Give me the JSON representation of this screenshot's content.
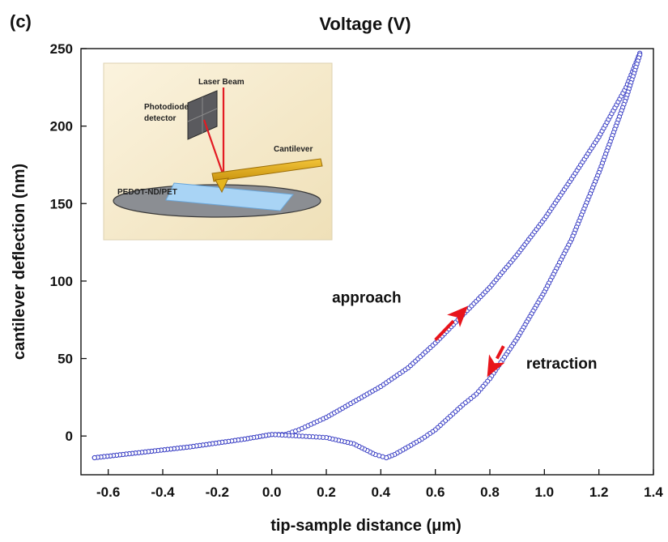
{
  "panel_label": "(c)",
  "chart_data": {
    "type": "scatter",
    "title": "Voltage (V)",
    "xlabel": "tip-sample distance  (μm)",
    "ylabel": "cantilever deflection  (nm)",
    "xlim": [
      -0.7,
      1.4
    ],
    "ylim": [
      -25,
      250
    ],
    "xticks": [
      -0.6,
      -0.4,
      -0.2,
      0.0,
      0.2,
      0.4,
      0.6,
      0.8,
      1.0,
      1.2,
      1.4
    ],
    "xtick_labels": [
      "-0.6",
      "-0.4",
      "-0.2",
      "0.0",
      "0.2",
      "0.4",
      "0.6",
      "0.8",
      "1.0",
      "1.2",
      "1.4"
    ],
    "yticks": [
      0,
      50,
      100,
      150,
      200,
      250
    ],
    "ytick_labels": [
      "0",
      "50",
      "100",
      "150",
      "200",
      "250"
    ],
    "marker_color": "#3a3fc4",
    "grid": false,
    "series": [
      {
        "x": [
          -0.65,
          -0.5,
          -0.3,
          -0.1,
          0.0,
          0.05,
          0.1,
          0.2,
          0.3,
          0.4,
          0.5,
          0.6,
          0.7,
          0.8,
          0.9,
          1.0,
          1.1,
          1.2,
          1.3,
          1.35
        ],
        "y": [
          -14,
          -11,
          -7,
          -2,
          1,
          1,
          4,
          12,
          22,
          32,
          44,
          60,
          78,
          96,
          117,
          140,
          166,
          193,
          225,
          247
        ]
      },
      {
        "x": [
          1.35,
          1.3,
          1.2,
          1.1,
          1.0,
          0.9,
          0.8,
          0.75,
          0.7,
          0.6,
          0.55,
          0.5,
          0.45,
          0.42,
          0.38,
          0.3,
          0.2,
          0.1,
          0.0,
          -0.1,
          -0.3,
          -0.5,
          -0.65
        ],
        "y": [
          246,
          218,
          170,
          127,
          93,
          63,
          37,
          27,
          20,
          4,
          -2,
          -7,
          -12,
          -14,
          -12,
          -5,
          -1,
          0,
          1,
          -2,
          -7,
          -11,
          -14
        ]
      }
    ],
    "annotations": [
      {
        "text": "approach",
        "arrow_from": [
          0.6,
          62
        ],
        "arrow_to": [
          0.72,
          84
        ]
      },
      {
        "text": "retraction",
        "arrow_from": [
          0.85,
          58
        ],
        "arrow_to": [
          0.79,
          38
        ]
      }
    ],
    "arrow_color": "#e8141b"
  },
  "inset": {
    "labels": [
      "Laser Beam",
      "Photodiode",
      "detector",
      "Cantilever",
      "PEDOT-ND/PET"
    ]
  }
}
